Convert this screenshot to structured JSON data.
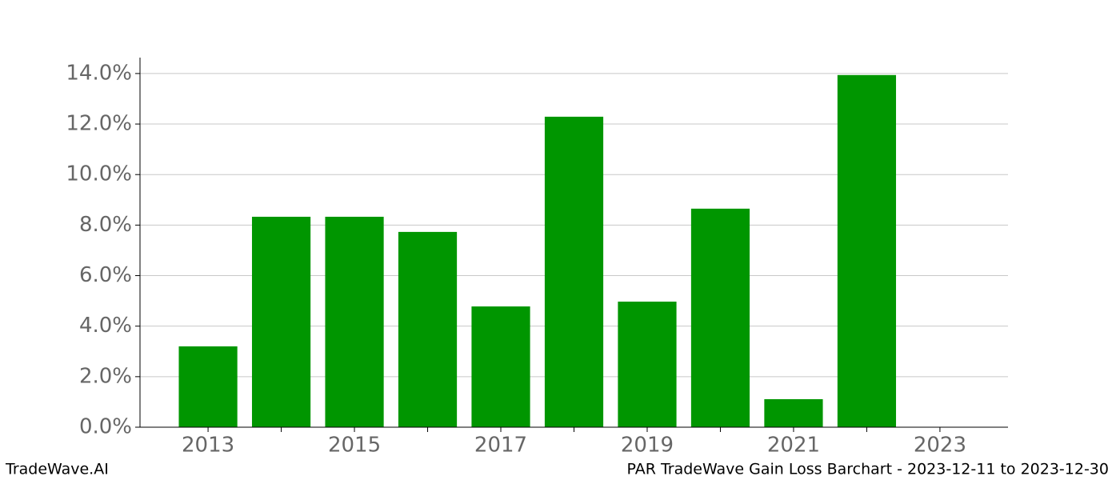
{
  "chart_data": {
    "type": "bar",
    "x": [
      2013,
      2014,
      2015,
      2016,
      2017,
      2018,
      2019,
      2020,
      2021,
      2022
    ],
    "values": [
      3.2,
      8.33,
      8.33,
      7.73,
      4.78,
      12.29,
      4.97,
      8.65,
      1.11,
      13.94
    ],
    "bar_width": 0.8,
    "color": "#009600",
    "xlim": [
      2012.07,
      2023.93
    ],
    "xticks": [
      2013,
      2015,
      2017,
      2019,
      2021,
      2023
    ],
    "xminor_ticks": [
      2014,
      2016,
      2018,
      2020,
      2022
    ],
    "ylim": [
      0,
      14.63
    ],
    "yticks": [
      {
        "value": 0,
        "label": "0.0%"
      },
      {
        "value": 2,
        "label": "2.0%"
      },
      {
        "value": 4,
        "label": "4.0%"
      },
      {
        "value": 6,
        "label": "6.0%"
      },
      {
        "value": 8,
        "label": "8.0%"
      },
      {
        "value": 10,
        "label": "10.0%"
      },
      {
        "value": 12,
        "label": "12.0%"
      },
      {
        "value": 14,
        "label": "14.0%"
      }
    ],
    "grid": true,
    "footer_left": "TradeWave.AI",
    "footer_right": "PAR TradeWave Gain Loss Barchart - 2023-12-11 to 2023-12-30"
  }
}
